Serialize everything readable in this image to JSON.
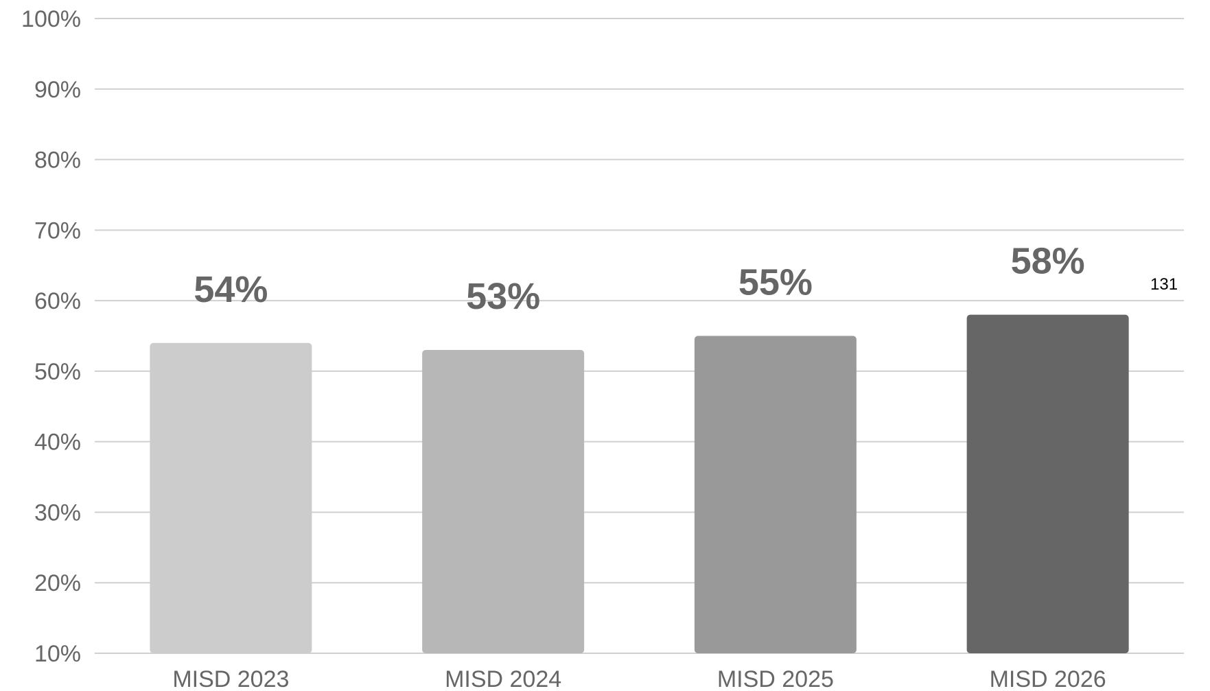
{
  "page_number": "131",
  "chart_data": {
    "type": "bar",
    "title": "",
    "xlabel": "",
    "ylabel": "",
    "categories": [
      "MISD 2023",
      "MISD 2024",
      "MISD 2025",
      "MISD 2026"
    ],
    "values": [
      54,
      53,
      55,
      58
    ],
    "data_labels": [
      "54%",
      "53%",
      "55%",
      "58%"
    ],
    "bar_colors": [
      "#cccccc",
      "#b7b7b7",
      "#999999",
      "#666666"
    ],
    "ylim": [
      10,
      100
    ],
    "yticks": [
      10,
      20,
      30,
      40,
      50,
      60,
      70,
      80,
      90,
      100
    ],
    "ytick_labels": [
      "10%",
      "20%",
      "30%",
      "40%",
      "50%",
      "60%",
      "70%",
      "80%",
      "90%",
      "100%"
    ],
    "grid": true,
    "legend": "none"
  }
}
